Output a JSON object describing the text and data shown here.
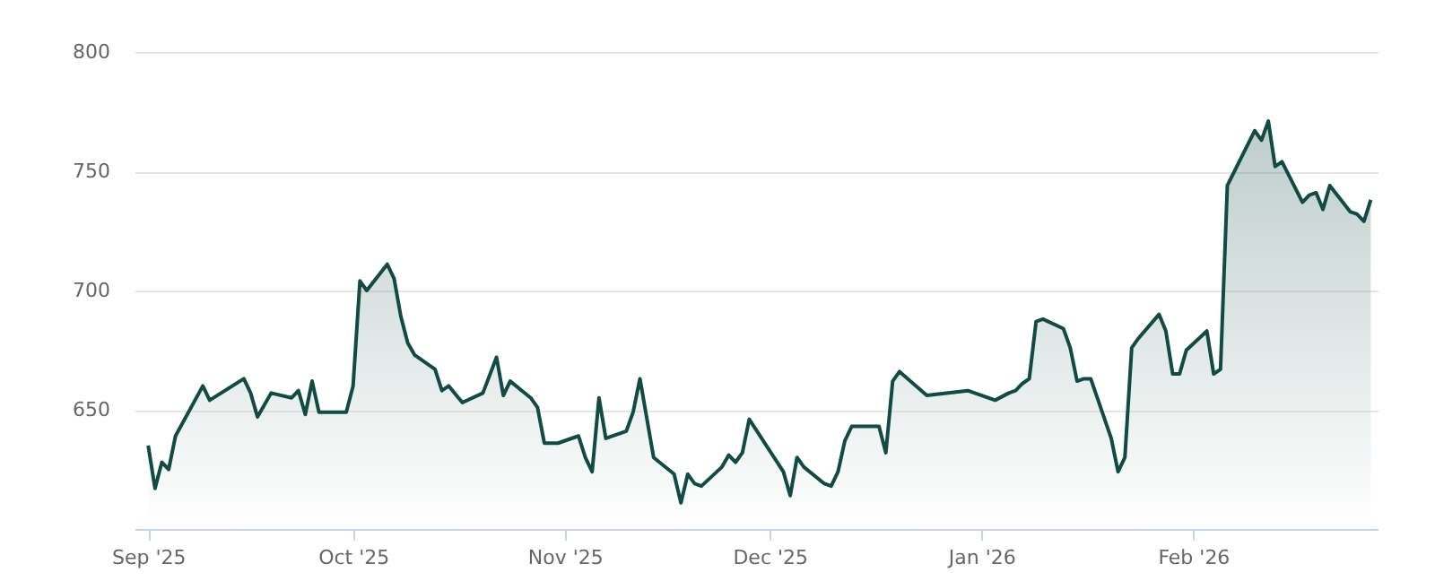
{
  "chart_data": {
    "type": "area",
    "grid": "y",
    "xlim": [
      "2025-08-30",
      "2026-02-28"
    ],
    "xticks": [
      {
        "value": "2025-09-01",
        "label": "Sep '25"
      },
      {
        "value": "2025-10-01",
        "label": "Oct '25"
      },
      {
        "value": "2025-11-01",
        "label": "Nov '25"
      },
      {
        "value": "2025-12-01",
        "label": "Dec '25"
      },
      {
        "value": "2026-01-01",
        "label": "Jan '26"
      },
      {
        "value": "2026-02-01",
        "label": "Feb '26"
      }
    ],
    "ylim": [
      600,
      800
    ],
    "yticks": [
      650,
      700,
      750,
      800
    ],
    "x": [
      "2025-09-01",
      "2025-09-02",
      "2025-09-03",
      "2025-09-04",
      "2025-09-05",
      "2025-09-09",
      "2025-09-10",
      "2025-09-15",
      "2025-09-16",
      "2025-09-17",
      "2025-09-19",
      "2025-09-22",
      "2025-09-23",
      "2025-09-24",
      "2025-09-25",
      "2025-09-26",
      "2025-09-30",
      "2025-10-01",
      "2025-10-02",
      "2025-10-03",
      "2025-10-06",
      "2025-10-07",
      "2025-10-08",
      "2025-10-09",
      "2025-10-10",
      "2025-10-13",
      "2025-10-14",
      "2025-10-15",
      "2025-10-17",
      "2025-10-20",
      "2025-10-22",
      "2025-10-23",
      "2025-10-24",
      "2025-10-27",
      "2025-10-28",
      "2025-10-29",
      "2025-10-31",
      "2025-11-03",
      "2025-11-04",
      "2025-11-05",
      "2025-11-06",
      "2025-11-07",
      "2025-11-10",
      "2025-11-11",
      "2025-11-12",
      "2025-11-14",
      "2025-11-17",
      "2025-11-18",
      "2025-11-19",
      "2025-11-20",
      "2025-11-21",
      "2025-11-24",
      "2025-11-25",
      "2025-11-26",
      "2025-11-27",
      "2025-11-28",
      "2025-12-03",
      "2025-12-04",
      "2025-12-05",
      "2025-12-06",
      "2025-12-09",
      "2025-12-10",
      "2025-12-11",
      "2025-12-12",
      "2025-12-13",
      "2025-12-17",
      "2025-12-18",
      "2025-12-19",
      "2025-12-20",
      "2025-12-24",
      "2025-12-30",
      "2026-01-03",
      "2026-01-05",
      "2026-01-06",
      "2026-01-07",
      "2026-01-08",
      "2026-01-09",
      "2026-01-10",
      "2026-01-13",
      "2026-01-14",
      "2026-01-15",
      "2026-01-16",
      "2026-01-17",
      "2026-01-20",
      "2026-01-21",
      "2026-01-22",
      "2026-01-23",
      "2026-01-24",
      "2026-01-27",
      "2026-01-28",
      "2026-01-29",
      "2026-01-30",
      "2026-01-31",
      "2026-02-03",
      "2026-02-04",
      "2026-02-05",
      "2026-02-06",
      "2026-02-10",
      "2026-02-11",
      "2026-02-12",
      "2026-02-13",
      "2026-02-14",
      "2026-02-17",
      "2026-02-18",
      "2026-02-19",
      "2026-02-20",
      "2026-02-21",
      "2026-02-24",
      "2026-02-25",
      "2026-02-26",
      "2026-02-27"
    ],
    "series": [
      {
        "color": "#124a44",
        "values": [
          635,
          617,
          628,
          625,
          639,
          660,
          654,
          663,
          657,
          647,
          657,
          655,
          658,
          648,
          662,
          649,
          649,
          660,
          704,
          700,
          711,
          705,
          689,
          678,
          673,
          667,
          658,
          660,
          653,
          657,
          672,
          656,
          662,
          655,
          651,
          636,
          636,
          639,
          630,
          624,
          655,
          638,
          641,
          649,
          663,
          630,
          623,
          611,
          623,
          619,
          618,
          626,
          631,
          628,
          632,
          646,
          624,
          614,
          630,
          626,
          619,
          618,
          624,
          637,
          643,
          643,
          632,
          662,
          666,
          656,
          658,
          654,
          657,
          658,
          661,
          663,
          687,
          688,
          684,
          676,
          662,
          663,
          663,
          638,
          624,
          630,
          676,
          680,
          690,
          683,
          665,
          665,
          675,
          683,
          665,
          667,
          744,
          767,
          763,
          771,
          752,
          754,
          737,
          740,
          741,
          734,
          744,
          733,
          732,
          729,
          738
        ]
      }
    ]
  }
}
